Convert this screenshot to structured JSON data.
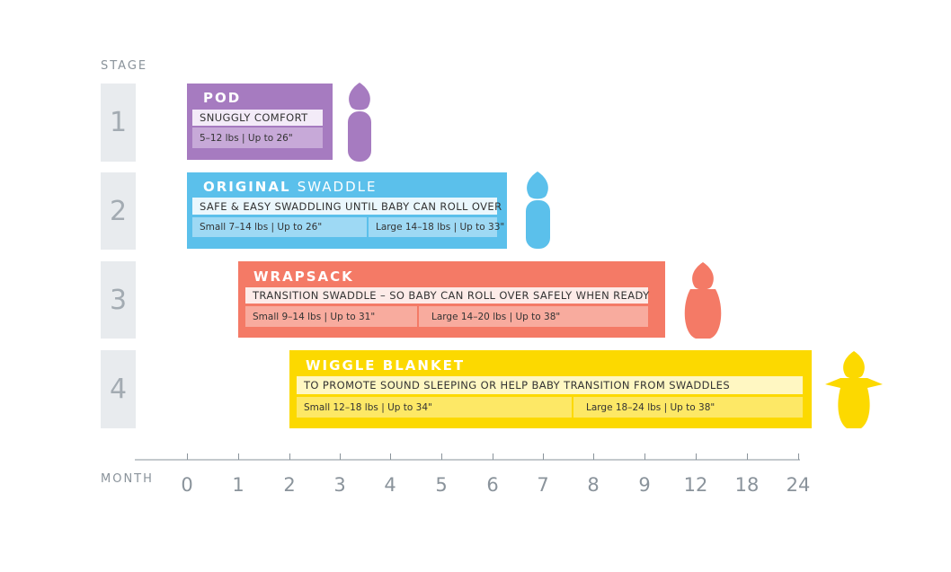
{
  "axis_labels": {
    "stage": "STAGE",
    "month": "MONTH"
  },
  "stages": [
    "1",
    "2",
    "3",
    "4"
  ],
  "months": [
    "0",
    "1",
    "2",
    "3",
    "4",
    "5",
    "6",
    "7",
    "8",
    "9",
    "12",
    "18",
    "24"
  ],
  "products": [
    {
      "title": [
        "POD"
      ],
      "tagline": "SNUGGLY COMFORT",
      "sizes": [
        "5–12 lbs | Up to 26\""
      ]
    },
    {
      "title": [
        "ORIGINAL",
        "SWADDLE"
      ],
      "tagline": "SAFE & EASY SWADDLING UNTIL BABY CAN ROLL OVER",
      "sizes": [
        "Small 7–14 lbs | Up to 26\"",
        "Large 14–18 lbs | Up to 33\""
      ]
    },
    {
      "title": [
        "WRAPSACK"
      ],
      "tagline": "TRANSITION SWADDLE – SO BABY CAN ROLL OVER SAFELY WHEN READY",
      "sizes": [
        "Small 9–14 lbs | Up to 31\"",
        "Large 14–20 lbs | Up to 38\""
      ]
    },
    {
      "title": [
        "WIGGLE",
        "BLANKET"
      ],
      "tagline": "TO PROMOTE SOUND SLEEPING OR HELP BABY TRANSITION FROM SWADDLES",
      "sizes": [
        "Small 12–18 lbs | Up to 34\"",
        "Large 18–24 lbs | Up to 38\""
      ]
    }
  ]
}
